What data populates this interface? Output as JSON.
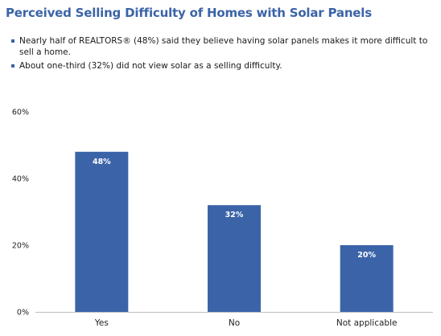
{
  "title": "Perceived Selling Difficulty of Homes with Solar Panels",
  "bullets": [
    "Nearly half of REALTORS® (48%) said they believe having solar panels makes it more difficult to sell a home.",
    "About one-third (32%) did not view solar as a selling difficulty."
  ],
  "colors": {
    "title": "#3b64a8",
    "bar": "#3b64a8",
    "bullet": "#3b64a8",
    "axis": "#bfbfbf"
  },
  "chart_data": {
    "type": "bar",
    "title": "",
    "xlabel": "",
    "ylabel": "",
    "categories": [
      "Yes",
      "No",
      "Not applicable"
    ],
    "values": [
      48,
      32,
      20
    ],
    "data_labels": [
      "48%",
      "32%",
      "20%"
    ],
    "ylim": [
      0,
      60
    ],
    "yticks": [
      0,
      20,
      40,
      60
    ],
    "ytick_labels": [
      "0%",
      "20%",
      "40%",
      "60%"
    ],
    "grid": false,
    "legend": "none"
  }
}
